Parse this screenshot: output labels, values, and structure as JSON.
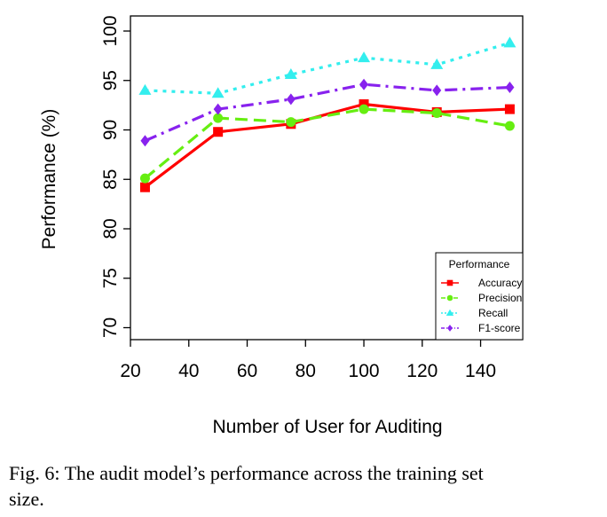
{
  "chart_data": {
    "type": "line",
    "x": [
      25,
      50,
      75,
      100,
      125,
      150
    ],
    "series": [
      {
        "name": "Accuracy",
        "values": [
          84.2,
          89.8,
          90.6,
          92.6,
          91.8,
          92.1
        ],
        "color": "#ff0000",
        "marker": "square",
        "dash": "solid"
      },
      {
        "name": "Precision",
        "values": [
          85.1,
          91.2,
          90.8,
          92.1,
          91.7,
          90.4
        ],
        "color": "#66ee11",
        "marker": "circle",
        "dash": "long-dash"
      },
      {
        "name": "Recall",
        "values": [
          94.0,
          93.7,
          95.6,
          97.3,
          96.6,
          98.8
        ],
        "color": "#33eeee",
        "marker": "triangle",
        "dash": "dotted"
      },
      {
        "name": "F1-score",
        "values": [
          88.9,
          92.1,
          93.1,
          94.6,
          94.0,
          94.3
        ],
        "color": "#8822ee",
        "marker": "diamond",
        "dash": "dash-dot"
      }
    ],
    "xlabel": "Number of User for Auditing",
    "ylabel": "Performance (%)",
    "x_ticks": [
      "20",
      "40",
      "60",
      "80",
      "100",
      "120",
      "140"
    ],
    "y_ticks": [
      "70",
      "75",
      "80",
      "85",
      "90",
      "95",
      "100"
    ],
    "xlim": [
      20,
      150
    ],
    "ylim": [
      70,
      100
    ],
    "legend": {
      "title": "Performance",
      "placement": "bottom-right"
    }
  },
  "caption": {
    "line1": "Fig. 6: The audit model’s performance across the training set",
    "line2": "size."
  }
}
